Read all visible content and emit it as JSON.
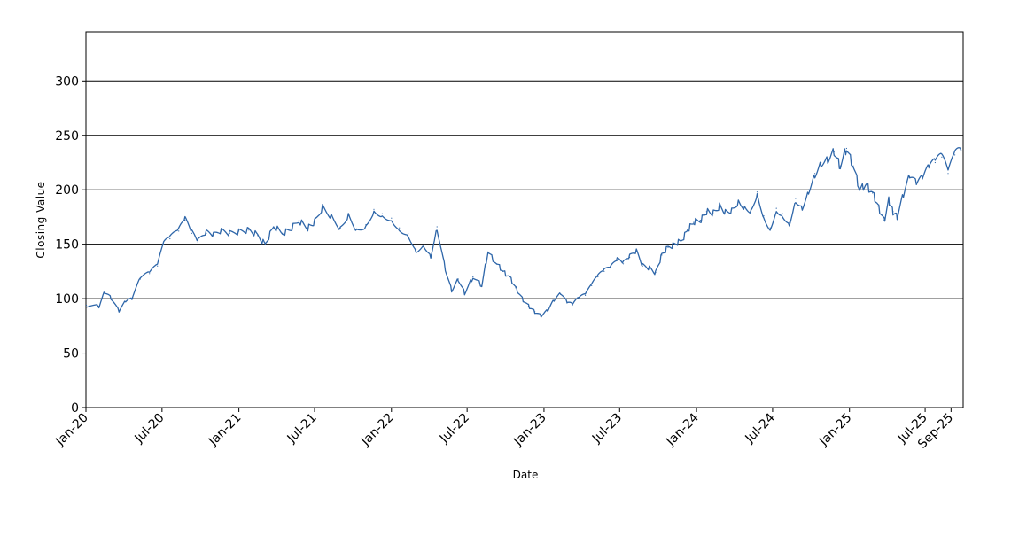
{
  "chart_data": {
    "type": "line",
    "xlabel": "Date",
    "ylabel": "Closing Value",
    "ylim": [
      0,
      345
    ],
    "xlim": [
      "2020-01-01",
      "2025-09-30"
    ],
    "y_ticks": [
      0,
      50,
      100,
      150,
      200,
      250,
      300
    ],
    "x_ticks": [
      {
        "label": "Jan-20",
        "date": "2020-01-01"
      },
      {
        "label": "Jul-20",
        "date": "2020-07-01"
      },
      {
        "label": "Jan-21",
        "date": "2021-01-01"
      },
      {
        "label": "Jul-21",
        "date": "2021-07-01"
      },
      {
        "label": "Jan-22",
        "date": "2022-01-01"
      },
      {
        "label": "Jul-22",
        "date": "2022-07-01"
      },
      {
        "label": "Jan-23",
        "date": "2023-01-01"
      },
      {
        "label": "Jul-23",
        "date": "2023-07-01"
      },
      {
        "label": "Jan-24",
        "date": "2024-01-01"
      },
      {
        "label": "Jul-24",
        "date": "2024-07-01"
      },
      {
        "label": "Jan-25",
        "date": "2025-01-01"
      },
      {
        "label": "Jul-25",
        "date": "2025-07-01"
      },
      {
        "label": "Sep-25",
        "date": "2025-09-01"
      }
    ],
    "grid": "horizontal",
    "line_color": "#2e66a9",
    "series": [
      {
        "x": [
          "2020-01-02",
          "2020-02-01",
          "2020-02-15",
          "2020-03-01",
          "2020-03-20",
          "2020-04-05",
          "2020-04-20",
          "2020-05-10",
          "2020-06-01",
          "2020-06-20",
          "2020-07-05",
          "2020-07-20",
          "2020-08-10",
          "2020-08-25",
          "2020-09-10",
          "2020-09-25",
          "2020-10-15",
          "2020-11-01",
          "2020-11-20",
          "2020-12-10",
          "2021-01-01",
          "2021-01-25",
          "2021-02-15",
          "2021-03-05",
          "2021-03-25",
          "2021-04-15",
          "2021-05-05",
          "2021-05-25",
          "2021-06-15",
          "2021-07-01",
          "2021-07-20",
          "2021-08-10",
          "2021-09-01",
          "2021-09-20",
          "2021-10-10",
          "2021-11-01",
          "2021-11-20",
          "2021-12-10",
          "2022-01-01",
          "2022-01-20",
          "2022-02-10",
          "2022-03-01",
          "2022-03-20",
          "2022-04-05",
          "2022-04-20",
          "2022-05-10",
          "2022-05-25",
          "2022-06-10",
          "2022-06-25",
          "2022-07-15",
          "2022-08-05",
          "2022-08-20",
          "2022-09-10",
          "2022-09-25",
          "2022-10-10",
          "2022-10-25",
          "2022-11-10",
          "2022-11-25",
          "2022-12-10",
          "2022-12-25",
          "2023-01-10",
          "2023-01-25",
          "2023-02-10",
          "2023-02-25",
          "2023-03-10",
          "2023-03-25",
          "2023-04-10",
          "2023-04-25",
          "2023-05-10",
          "2023-05-25",
          "2023-06-10",
          "2023-06-25",
          "2023-07-10",
          "2023-07-25",
          "2023-08-10",
          "2023-08-25",
          "2023-09-10",
          "2023-09-25",
          "2023-10-10",
          "2023-10-25",
          "2023-11-10",
          "2023-11-25",
          "2023-12-10",
          "2023-12-25",
          "2024-01-10",
          "2024-01-25",
          "2024-02-10",
          "2024-02-25",
          "2024-03-10",
          "2024-03-25",
          "2024-04-10",
          "2024-04-25",
          "2024-05-10",
          "2024-05-25",
          "2024-06-10",
          "2024-06-25",
          "2024-07-10",
          "2024-07-25",
          "2024-08-10",
          "2024-08-25",
          "2024-09-10",
          "2024-09-25",
          "2024-10-10",
          "2024-10-25",
          "2024-11-10",
          "2024-11-25",
          "2024-12-10",
          "2024-12-25",
          "2025-01-10",
          "2025-01-25",
          "2025-02-10",
          "2025-02-25",
          "2025-03-10",
          "2025-03-25",
          "2025-04-05",
          "2025-04-15",
          "2025-04-25",
          "2025-05-10",
          "2025-05-25",
          "2025-06-10",
          "2025-06-25",
          "2025-07-10",
          "2025-07-25",
          "2025-08-10",
          "2025-08-25",
          "2025-09-10",
          "2025-09-25"
        ],
        "y": [
          94,
          93,
          106,
          100,
          88,
          97,
          99,
          118,
          123,
          130,
          150,
          155,
          162,
          172,
          160,
          152,
          160,
          158,
          162,
          160,
          162,
          163,
          158,
          150,
          166,
          160,
          164,
          172,
          165,
          170,
          184,
          176,
          165,
          178,
          164,
          168,
          182,
          178,
          174,
          165,
          160,
          145,
          150,
          140,
          166,
          128,
          108,
          118,
          105,
          120,
          112,
          143,
          132,
          125,
          120,
          110,
          100,
          93,
          88,
          84,
          89,
          98,
          104,
          96,
          94,
          100,
          103,
          112,
          120,
          125,
          128,
          135,
          132,
          138,
          143,
          130,
          128,
          124,
          140,
          147,
          150,
          153,
          163,
          170,
          172,
          180,
          178,
          185,
          180,
          182,
          190,
          185,
          182,
          198,
          176,
          165,
          183,
          178,
          170,
          192,
          185,
          200,
          215,
          225,
          228,
          235,
          222,
          238,
          222,
          200,
          205,
          197,
          185,
          172,
          190,
          180,
          175,
          195,
          212,
          205,
          210,
          220,
          225,
          230,
          215,
          232,
          236
        ]
      }
    ]
  }
}
